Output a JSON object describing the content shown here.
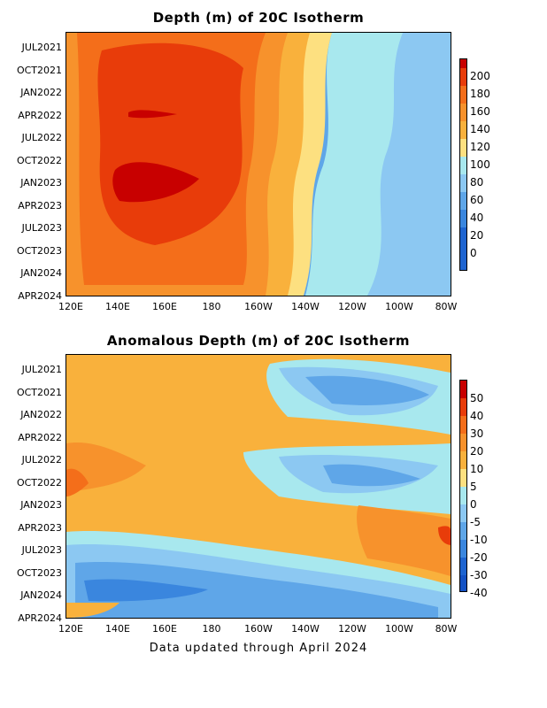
{
  "chart_data": [
    {
      "type": "heatmap",
      "title": "Depth (m) of 20C Isotherm",
      "x_ticks": [
        "120E",
        "140E",
        "160E",
        "180",
        "160W",
        "140W",
        "120W",
        "100W",
        "80W"
      ],
      "y_ticks": [
        "JUL2021",
        "OCT2021",
        "JAN2022",
        "APR2022",
        "JUL2022",
        "OCT2022",
        "JAN2023",
        "APR2023",
        "JUL2023",
        "OCT2023",
        "JAN2024",
        "APR2024"
      ],
      "colorbar": {
        "labels": [
          "200",
          "180",
          "160",
          "140",
          "120",
          "100",
          "80",
          "60",
          "40",
          "20",
          "0"
        ],
        "colors": [
          "#c80000",
          "#e83c0a",
          "#f46e1a",
          "#f7922c",
          "#f9b13c",
          "#fde080",
          "#a8e8ee",
          "#8cc8f2",
          "#5fa6e8",
          "#3a86de",
          "#1e64d0"
        ]
      },
      "grid": false,
      "legend": "right"
    },
    {
      "type": "heatmap",
      "title": "Anomalous Depth (m) of 20C Isotherm",
      "x_ticks": [
        "120E",
        "140E",
        "160E",
        "180",
        "160W",
        "140W",
        "120W",
        "100W",
        "80W"
      ],
      "y_ticks": [
        "JUL2021",
        "OCT2021",
        "JAN2022",
        "APR2022",
        "JUL2022",
        "OCT2022",
        "JAN2023",
        "APR2023",
        "JUL2023",
        "OCT2023",
        "JAN2024",
        "APR2024"
      ],
      "colorbar": {
        "labels": [
          "50",
          "40",
          "30",
          "20",
          "10",
          "5",
          "0",
          "-5",
          "-10",
          "-20",
          "-30",
          "-40"
        ],
        "colors": [
          "#c80000",
          "#e83c0a",
          "#f46e1a",
          "#f7922c",
          "#f9b13c",
          "#fde080",
          "#a8e8ee",
          "#8cc8f2",
          "#5fa6e8",
          "#3a86de",
          "#1e64d0",
          "#1452c4"
        ]
      },
      "grid": false,
      "legend": "right"
    }
  ],
  "footer": "Data updated through April 2024"
}
